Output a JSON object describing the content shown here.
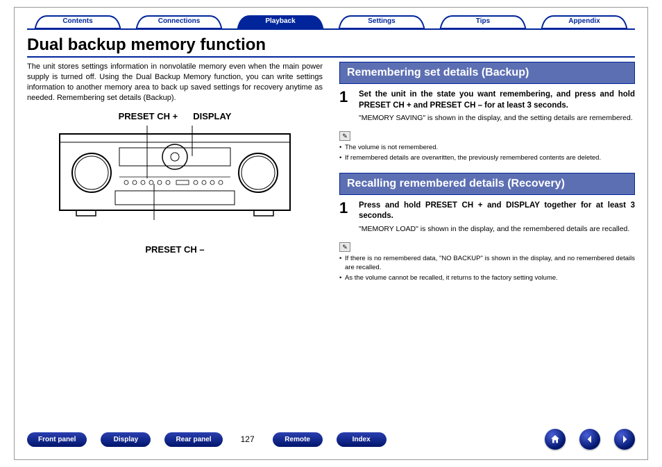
{
  "tabs": [
    {
      "label": "Contents",
      "active": false
    },
    {
      "label": "Connections",
      "active": false
    },
    {
      "label": "Playback",
      "active": true
    },
    {
      "label": "Settings",
      "active": false
    },
    {
      "label": "Tips",
      "active": false
    },
    {
      "label": "Appendix",
      "active": false
    }
  ],
  "page_title": "Dual backup memory function",
  "intro_text": "The unit stores settings information in nonvolatile memory even when the main power supply is turned off. Using the Dual Backup Memory function, you can write settings information to another memory area to back up saved settings for recovery anytime as needed. Remembering set details (Backup).",
  "device_labels": {
    "top_left": "PRESET CH +",
    "top_right": "DISPLAY",
    "bottom": "PRESET CH –"
  },
  "sections": [
    {
      "heading": "Remembering set details (Backup)",
      "step_num": "1",
      "step_title": "Set the unit in the state you want remembering, and press and hold PRESET CH + and PRESET CH – for at least 3 seconds.",
      "step_desc": "\"MEMORY SAVING\" is shown in the display, and the setting details are remembered.",
      "note_icon": "✎",
      "bullets": [
        "The volume is not remembered.",
        "If remembered details are overwritten, the previously remembered contents are deleted."
      ]
    },
    {
      "heading": "Recalling remembered details (Recovery)",
      "step_num": "1",
      "step_title": "Press and hold PRESET CH + and DISPLAY together for at least 3 seconds.",
      "step_desc": "\"MEMORY LOAD\" is shown in the display, and the remembered details are recalled.",
      "note_icon": "✎",
      "bullets": [
        "If there is no remembered data, \"NO BACKUP\" is shown in the display, and no remembered details are recalled.",
        "As the volume cannot be recalled, it returns to the factory setting volume."
      ]
    }
  ],
  "bottom_nav": {
    "pills": [
      "Front panel",
      "Display",
      "Rear panel"
    ],
    "page_number": "127",
    "pills_right": [
      "Remote",
      "Index"
    ],
    "icons": [
      "home",
      "prev",
      "next"
    ]
  },
  "colors": {
    "brand": "#00259b",
    "section_bg": "#5d6fb3",
    "pill_grad_top": "#2a3fb0",
    "pill_grad_bot": "#00156b"
  }
}
